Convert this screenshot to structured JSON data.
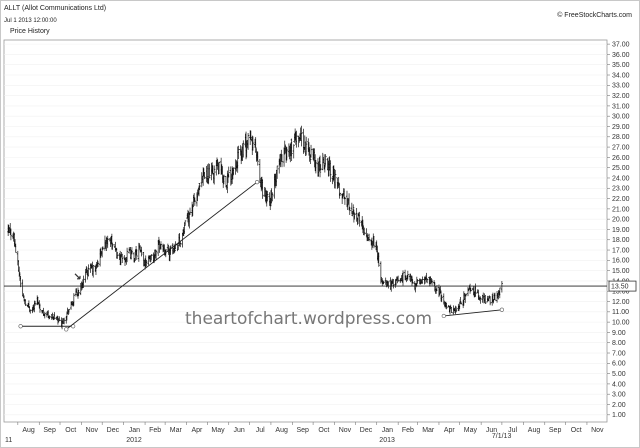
{
  "chart_data": {
    "type": "ohlc",
    "title": "ALLT (Allot Communications Ltd)",
    "timestamp": "Jul 1 2013 12:00:00",
    "subtitle": "Price History",
    "copyright": "© FreeStockCharts.com",
    "watermark": "theartofchart.wordpress.com",
    "last_price_label": "13.50",
    "last_date_label": "7/1/13",
    "ylim": [
      0.3,
      37.4
    ],
    "y_ticks": [
      "1.00",
      "2.00",
      "3.00",
      "4.00",
      "5.00",
      "6.00",
      "7.00",
      "8.00",
      "9.00",
      "10.00",
      "11.00",
      "12.00",
      "13.00",
      "14.00",
      "15.00",
      "16.00",
      "17.00",
      "18.00",
      "19.00",
      "20.00",
      "21.00",
      "22.00",
      "23.00",
      "24.00",
      "25.00",
      "26.00",
      "27.00",
      "28.00",
      "29.00",
      "30.00",
      "31.00",
      "32.00",
      "33.00",
      "34.00",
      "35.00",
      "36.00",
      "37.00"
    ],
    "x_month_labels": [
      "Aug",
      "Sep",
      "Oct",
      "Nov",
      "Dec",
      "Jan",
      "Feb",
      "Mar",
      "Apr",
      "May",
      "Jun",
      "Jul",
      "Aug",
      "Sep",
      "Oct",
      "Nov",
      "Dec",
      "Jan",
      "Feb",
      "Mar",
      "Apr",
      "May",
      "Jun",
      "Jul",
      "Aug",
      "Sep",
      "Oct",
      "Nov"
    ],
    "x_year_labels": [
      "11",
      "2012",
      "2013"
    ],
    "price_path": [
      [
        "2011-07-18",
        18.6
      ],
      [
        "2011-07-25",
        18.8
      ],
      [
        "2011-08-01",
        15.5
      ],
      [
        "2011-08-08",
        12.6
      ],
      [
        "2011-08-15",
        11.6
      ],
      [
        "2011-08-22",
        11.2
      ],
      [
        "2011-08-29",
        12.2
      ],
      [
        "2011-09-05",
        11.0
      ],
      [
        "2011-09-12",
        10.8
      ],
      [
        "2011-09-19",
        10.5
      ],
      [
        "2011-09-26",
        10.4
      ],
      [
        "2011-10-03",
        9.9
      ],
      [
        "2011-10-10",
        10.8
      ],
      [
        "2011-10-17",
        11.6
      ],
      [
        "2011-10-24",
        12.8
      ],
      [
        "2011-10-31",
        13.3
      ],
      [
        "2011-11-07",
        14.6
      ],
      [
        "2011-11-14",
        15.2
      ],
      [
        "2011-11-21",
        15.1
      ],
      [
        "2011-11-28",
        16.5
      ],
      [
        "2011-12-05",
        17.6
      ],
      [
        "2011-12-12",
        18.2
      ],
      [
        "2011-12-19",
        16.9
      ],
      [
        "2011-12-26",
        16.2
      ],
      [
        "2012-01-02",
        16.1
      ],
      [
        "2012-01-09",
        16.7
      ],
      [
        "2012-01-16",
        16.3
      ],
      [
        "2012-01-23",
        17.1
      ],
      [
        "2012-01-30",
        15.8
      ],
      [
        "2012-02-06",
        16.4
      ],
      [
        "2012-02-13",
        16.2
      ],
      [
        "2012-02-20",
        17.6
      ],
      [
        "2012-02-27",
        17.3
      ],
      [
        "2012-03-05",
        16.7
      ],
      [
        "2012-03-12",
        17.0
      ],
      [
        "2012-03-19",
        17.7
      ],
      [
        "2012-03-26",
        18.4
      ],
      [
        "2012-04-02",
        20.0
      ],
      [
        "2012-04-09",
        21.3
      ],
      [
        "2012-04-16",
        22.1
      ],
      [
        "2012-04-23",
        23.5
      ],
      [
        "2012-04-30",
        24.6
      ],
      [
        "2012-05-07",
        24.2
      ],
      [
        "2012-05-14",
        25.1
      ],
      [
        "2012-05-21",
        24.6
      ],
      [
        "2012-05-28",
        23.6
      ],
      [
        "2012-06-04",
        24.4
      ],
      [
        "2012-06-11",
        25.7
      ],
      [
        "2012-06-18",
        26.4
      ],
      [
        "2012-06-25",
        27.2
      ],
      [
        "2012-07-02",
        27.6
      ],
      [
        "2012-07-09",
        27.0
      ],
      [
        "2012-07-16",
        23.6
      ],
      [
        "2012-07-23",
        22.4
      ],
      [
        "2012-07-30",
        21.6
      ],
      [
        "2012-08-06",
        23.3
      ],
      [
        "2012-08-13",
        25.4
      ],
      [
        "2012-08-20",
        26.8
      ],
      [
        "2012-08-27",
        26.4
      ],
      [
        "2012-09-03",
        27.4
      ],
      [
        "2012-09-10",
        28.3
      ],
      [
        "2012-09-17",
        27.3
      ],
      [
        "2012-09-24",
        26.6
      ],
      [
        "2012-10-01",
        26.2
      ],
      [
        "2012-10-08",
        24.7
      ],
      [
        "2012-10-15",
        25.6
      ],
      [
        "2012-10-22",
        25.5
      ],
      [
        "2012-10-29",
        24.6
      ],
      [
        "2012-11-05",
        23.1
      ],
      [
        "2012-11-12",
        22.5
      ],
      [
        "2012-11-19",
        21.6
      ],
      [
        "2012-11-26",
        21.0
      ],
      [
        "2012-12-03",
        20.4
      ],
      [
        "2012-12-10",
        19.5
      ],
      [
        "2012-12-17",
        18.6
      ],
      [
        "2012-12-24",
        17.9
      ],
      [
        "2012-12-31",
        17.7
      ],
      [
        "2013-01-07",
        14.0
      ],
      [
        "2013-01-14",
        13.6
      ],
      [
        "2013-01-21",
        13.7
      ],
      [
        "2013-01-28",
        13.9
      ],
      [
        "2013-02-04",
        14.1
      ],
      [
        "2013-02-11",
        14.6
      ],
      [
        "2013-02-18",
        14.2
      ],
      [
        "2013-02-25",
        13.6
      ],
      [
        "2013-03-04",
        13.9
      ],
      [
        "2013-03-11",
        14.2
      ],
      [
        "2013-03-18",
        13.9
      ],
      [
        "2013-03-25",
        13.5
      ],
      [
        "2013-04-01",
        13.0
      ],
      [
        "2013-04-08",
        12.0
      ],
      [
        "2013-04-15",
        11.3
      ],
      [
        "2013-04-22",
        11.1
      ],
      [
        "2013-04-29",
        11.5
      ],
      [
        "2013-05-06",
        12.3
      ],
      [
        "2013-05-13",
        13.1
      ],
      [
        "2013-05-20",
        13.3
      ],
      [
        "2013-05-27",
        12.5
      ],
      [
        "2013-06-03",
        12.4
      ],
      [
        "2013-06-10",
        12.0
      ],
      [
        "2013-06-17",
        12.3
      ],
      [
        "2013-06-24",
        12.6
      ],
      [
        "2013-07-01",
        13.6
      ]
    ],
    "horizontal_line": 13.5,
    "trendlines": [
      {
        "from": [
          "2011-08-05",
          9.6
        ],
        "to": [
          "2011-10-20",
          9.6
        ]
      },
      {
        "from": [
          "2011-10-10",
          9.3
        ],
        "to": [
          "2012-07-12",
          23.6
        ]
      },
      {
        "from": [
          "2013-04-08",
          10.6
        ],
        "to": [
          "2013-07-01",
          11.2
        ]
      }
    ]
  }
}
